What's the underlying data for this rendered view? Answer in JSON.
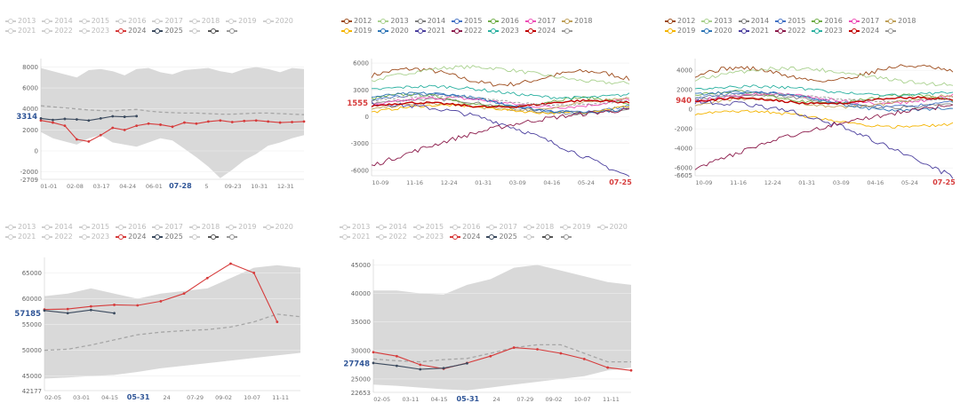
{
  "colors": {
    "grey_band": "#d9d9d9",
    "mean_dash": "#a6a6a6",
    "y2024": "#d63b3b",
    "y2025": "#3b4a5e",
    "highlight_blue": "#2f5597",
    "highlight_red": "#d63b3b"
  },
  "chart_data": [
    {
      "type": "line",
      "title": "",
      "legend": [
        {
          "label": "2013",
          "active": false
        },
        {
          "label": "2014",
          "active": false
        },
        {
          "label": "2015",
          "active": false
        },
        {
          "label": "2016",
          "active": false
        },
        {
          "label": "2017",
          "active": false
        },
        {
          "label": "2018",
          "active": false
        },
        {
          "label": "2019",
          "active": false
        },
        {
          "label": "2020",
          "active": false
        },
        {
          "label": "2021",
          "active": false
        },
        {
          "label": "2022",
          "active": false
        },
        {
          "label": "2023",
          "active": false
        },
        {
          "label": "2024",
          "active": true,
          "color": "#d63b3b"
        },
        {
          "label": "2025",
          "active": true,
          "color": "#3b4a5e"
        },
        {
          "label": "",
          "active": true,
          "color": "#cccccc"
        },
        {
          "label": "",
          "active": true,
          "color": "#555555"
        },
        {
          "label": "",
          "active": true,
          "color": "#999999"
        }
      ],
      "y_ticks": [
        -2000,
        0,
        2000,
        4000,
        6000,
        8000
      ],
      "y_range_labels": [
        "-2709",
        "8000"
      ],
      "ylim": [
        -2709,
        8800
      ],
      "highlight_value": "3314",
      "x_ticks": [
        "01-01",
        "02-08",
        "03-17",
        "04-24",
        "06-01",
        "07-28",
        "5",
        "09-23",
        "10-31",
        "12-31"
      ],
      "x_highlight": "07-28",
      "watermark": "",
      "band_max": [
        7900,
        7600,
        7300,
        7000,
        7700,
        7800,
        7600,
        7200,
        7800,
        7900,
        7500,
        7300,
        7700,
        7800,
        7900,
        7600,
        7400,
        7800,
        8000,
        7800,
        7500,
        7900,
        7800
      ],
      "band_min": [
        1800,
        1200,
        900,
        600,
        1200,
        1500,
        800,
        600,
        400,
        800,
        1200,
        1000,
        200,
        -600,
        -1500,
        -2600,
        -1800,
        -900,
        -300,
        500,
        800,
        1200,
        1500
      ],
      "mean": [
        4300,
        4200,
        4100,
        4000,
        3900,
        3850,
        3800,
        3900,
        3950,
        3800,
        3700,
        3650,
        3600,
        3600,
        3550,
        3500,
        3500,
        3550,
        3600,
        3600,
        3550,
        3500,
        3450
      ],
      "series": [
        {
          "name": "2024",
          "values": [
            2900,
            2700,
            2400,
            1100,
            900,
            1500,
            2200,
            2000,
            2400,
            2600,
            2500,
            2300,
            2700,
            2600,
            2800,
            2900,
            2750,
            2850,
            2900,
            2800,
            2700,
            2750,
            2800
          ]
        },
        {
          "name": "2025",
          "values": [
            3100,
            2950,
            3050,
            3000,
            2900,
            3100,
            3300,
            3250,
            3314,
            null,
            null,
            null,
            null,
            null,
            null,
            null,
            null,
            null,
            null,
            null,
            null,
            null,
            null
          ]
        }
      ]
    },
    {
      "type": "line",
      "title": "",
      "legend": [
        {
          "label": "2012",
          "color": "#9c4a1a"
        },
        {
          "label": "2013",
          "color": "#a9d18e"
        },
        {
          "label": "2014",
          "color": "#7f7f7f"
        },
        {
          "label": "2015",
          "color": "#4472c4"
        },
        {
          "label": "2016",
          "color": "#70ad47"
        },
        {
          "label": "2017",
          "color": "#ed4fb6"
        },
        {
          "label": "2018",
          "color": "#bfa05a"
        },
        {
          "label": "2019",
          "color": "#f4b400"
        },
        {
          "label": "2020",
          "color": "#2e75b6"
        },
        {
          "label": "2021",
          "color": "#4b3f9e"
        },
        {
          "label": "2022",
          "color": "#8b1a4a"
        },
        {
          "label": "2023",
          "color": "#2ab0a0"
        },
        {
          "label": "2024",
          "color": "#c00000"
        },
        {
          "label": "",
          "color": "#999999"
        }
      ],
      "y_ticks": [
        -6000,
        -3000,
        0,
        3000,
        6000
      ],
      "highlight_value": "1555",
      "x_ticks": [
        "10-09",
        "11-16",
        "12-24",
        "01-31",
        "03-09",
        "04-16",
        "05-24",
        "07-25"
      ],
      "x_highlight": "07-25",
      "ylim": [
        -6600,
        6500
      ]
    },
    {
      "type": "line",
      "title": "",
      "legend": [
        {
          "label": "2012",
          "color": "#9c4a1a"
        },
        {
          "label": "2013",
          "color": "#a9d18e"
        },
        {
          "label": "2014",
          "color": "#7f7f7f"
        },
        {
          "label": "2015",
          "color": "#4472c4"
        },
        {
          "label": "2016",
          "color": "#70ad47"
        },
        {
          "label": "2017",
          "color": "#ed4fb6"
        },
        {
          "label": "2018",
          "color": "#bfa05a"
        },
        {
          "label": "2019",
          "color": "#f4b400"
        },
        {
          "label": "2020",
          "color": "#2e75b6"
        },
        {
          "label": "2021",
          "color": "#4b3f9e"
        },
        {
          "label": "2022",
          "color": "#8b1a4a"
        },
        {
          "label": "2023",
          "color": "#2ab0a0"
        },
        {
          "label": "2024",
          "color": "#c00000"
        },
        {
          "label": "",
          "color": "#999999"
        }
      ],
      "y_ticks": [
        -6000,
        -4000,
        -2000,
        0,
        2000,
        4000
      ],
      "y_bottom_label": "-6605",
      "highlight_value": "940",
      "x_ticks": [
        "10-09",
        "11-16",
        "12-24",
        "01-31",
        "03-09",
        "04-16",
        "05-24",
        "07-25"
      ],
      "x_highlight": "07-25",
      "ylim": [
        -6800,
        5200
      ]
    },
    {
      "type": "line",
      "title": "",
      "legend": [
        {
          "label": "2013",
          "active": false
        },
        {
          "label": "2014",
          "active": false
        },
        {
          "label": "2015",
          "active": false
        },
        {
          "label": "2016",
          "active": false
        },
        {
          "label": "2017",
          "active": false
        },
        {
          "label": "2018",
          "active": false
        },
        {
          "label": "2019",
          "active": false
        },
        {
          "label": "2020",
          "active": false
        },
        {
          "label": "2021",
          "active": false
        },
        {
          "label": "2022",
          "active": false
        },
        {
          "label": "2023",
          "active": false
        },
        {
          "label": "2024",
          "active": true,
          "color": "#d63b3b"
        },
        {
          "label": "2025",
          "active": true,
          "color": "#3b4a5e"
        },
        {
          "label": "",
          "active": true,
          "color": "#cccccc"
        },
        {
          "label": "",
          "active": true,
          "color": "#555555"
        },
        {
          "label": "",
          "active": true,
          "color": "#999999"
        }
      ],
      "y_ticks": [
        45000,
        50000,
        55000,
        60000,
        65000
      ],
      "y_bottom_label": "42177",
      "ylim": [
        42177,
        68000
      ],
      "highlight_value": "57185",
      "x_ticks": [
        "02-05",
        "03-01",
        "04-15",
        "05-31",
        "24",
        "07-29",
        "09-02",
        "10-07",
        "11-11"
      ],
      "x_highlight": "05-31",
      "watermark": "",
      "band_max": [
        60500,
        61000,
        62000,
        61000,
        60000,
        61000,
        61500,
        62000,
        64000,
        66000,
        66500,
        66000
      ],
      "band_min": [
        44500,
        44700,
        45000,
        45200,
        45800,
        46500,
        47000,
        47500,
        48000,
        48500,
        49000,
        49500
      ],
      "mean": [
        50000,
        50200,
        51000,
        52000,
        53000,
        53500,
        53800,
        54000,
        54500,
        55500,
        57000,
        56500
      ],
      "series": [
        {
          "name": "2024",
          "values": [
            57900,
            58000,
            58500,
            58800,
            58700,
            59500,
            61000,
            64000,
            66800,
            65000,
            55500,
            null
          ]
        },
        {
          "name": "2025",
          "values": [
            57700,
            57200,
            57800,
            57185,
            null,
            null,
            null,
            null,
            null,
            null,
            null,
            null
          ]
        }
      ]
    },
    {
      "type": "line",
      "title": "",
      "legend": [
        {
          "label": "2013",
          "active": false
        },
        {
          "label": "2014",
          "active": false
        },
        {
          "label": "2015",
          "active": false
        },
        {
          "label": "2016",
          "active": false
        },
        {
          "label": "2017",
          "active": false
        },
        {
          "label": "2018",
          "active": false
        },
        {
          "label": "2019",
          "active": false
        },
        {
          "label": "2020",
          "active": false
        },
        {
          "label": "2021",
          "active": false
        },
        {
          "label": "2022",
          "active": false
        },
        {
          "label": "2023",
          "active": false
        },
        {
          "label": "2024",
          "active": true,
          "color": "#d63b3b"
        },
        {
          "label": "2025",
          "active": true,
          "color": "#3b4a5e"
        },
        {
          "label": "",
          "active": true,
          "color": "#cccccc"
        },
        {
          "label": "",
          "active": true,
          "color": "#555555"
        },
        {
          "label": "",
          "active": true,
          "color": "#999999"
        }
      ],
      "y_ticks": [
        25000,
        30000,
        35000,
        40000,
        45000
      ],
      "y_bottom_label": "22653",
      "ylim": [
        22653,
        46000
      ],
      "highlight_value": "27748",
      "x_ticks": [
        "02-05",
        "03-11",
        "04-15",
        "05-31",
        "24",
        "07-29",
        "09-02",
        "10-07",
        "11-11"
      ],
      "x_highlight": "05-31",
      "watermark": "",
      "band_max": [
        40500,
        40500,
        40000,
        39800,
        41500,
        42500,
        44500,
        45000,
        44000,
        43000,
        42000,
        41500
      ],
      "band_min": [
        24000,
        23800,
        23500,
        23200,
        23000,
        23500,
        24000,
        24500,
        25000,
        25500,
        26500,
        27000
      ],
      "mean": [
        28500,
        28200,
        28000,
        28400,
        28600,
        29500,
        30500,
        31000,
        31000,
        29500,
        28000,
        28000
      ],
      "series": [
        {
          "name": "2024",
          "values": [
            29700,
            29000,
            27500,
            26800,
            27800,
            29000,
            30500,
            30200,
            29500,
            28500,
            27000,
            26500
          ]
        },
        {
          "name": "2025",
          "values": [
            27800,
            27300,
            26700,
            26900,
            27748,
            null,
            null,
            null,
            null,
            null,
            null,
            null
          ]
        }
      ]
    }
  ]
}
